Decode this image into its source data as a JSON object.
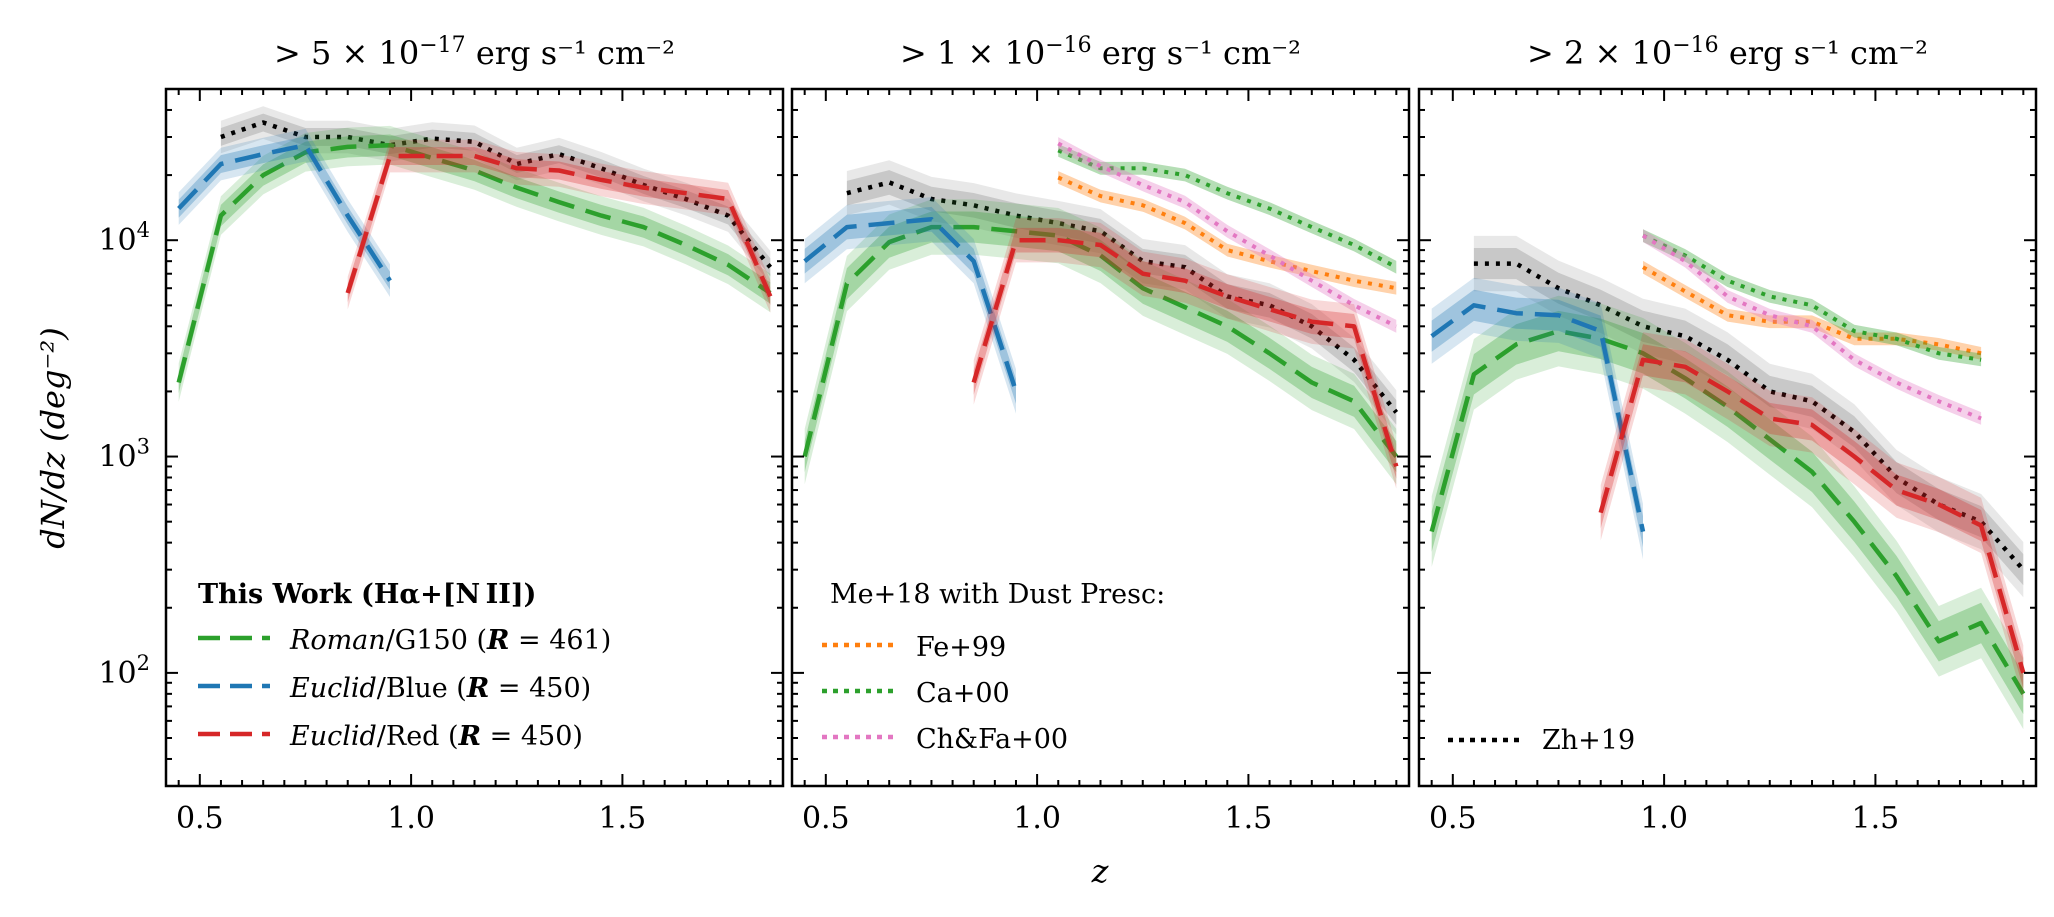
{
  "chart_data": {
    "type": "line",
    "layout": "three panels side by side, shared log y axis",
    "xlabel": "z",
    "ylabel": "dN/dz (deg⁻²)",
    "xlim": [
      0.42,
      1.88
    ],
    "ylim": [
      30,
      50000
    ],
    "yscale": "log",
    "x_ticks": [
      "0.5",
      "1.0",
      "1.5"
    ],
    "x_tick_values": [
      0.5,
      1.0,
      1.5
    ],
    "y_ticks": [
      {
        "base": "10",
        "exp": "2",
        "value": 100
      },
      {
        "base": "10",
        "exp": "3",
        "value": 1000
      },
      {
        "base": "10",
        "exp": "4",
        "value": 10000
      }
    ],
    "legend_thiswork": {
      "title": "This Work (Hα+[N II])",
      "entries": [
        {
          "prefix": "Roman",
          "suffix": "/G150 (",
          "rlabel": "R",
          "rvalue": " = 461)",
          "series": "roman"
        },
        {
          "prefix": "Euclid",
          "suffix": "/Blue (",
          "rlabel": "R",
          "rvalue": " = 450)",
          "series": "euclid_blue"
        },
        {
          "prefix": "Euclid",
          "suffix": "/Red (",
          "rlabel": "R",
          "rvalue": " = 450)",
          "series": "euclid_red"
        }
      ]
    },
    "legend_me18": {
      "title": "Me+18 with Dust Presc:",
      "entries": [
        {
          "label": "Fe+99",
          "series": "fe99"
        },
        {
          "label": "Ca+00",
          "series": "ca00"
        },
        {
          "label": "Ch&Fa+00",
          "series": "chfa00"
        }
      ]
    },
    "legend_zh19": {
      "entries": [
        {
          "label": "Zh+19",
          "series": "zh19"
        }
      ]
    },
    "styles": {
      "roman": {
        "color": "#2ca02c",
        "dash": "dashed"
      },
      "euclid_blue": {
        "color": "#1f77b4",
        "dash": "dashed"
      },
      "euclid_red": {
        "color": "#d62728",
        "dash": "dashed"
      },
      "zh19": {
        "color": "#000000",
        "dash": "dotted",
        "band": "#7f7f7f"
      },
      "fe99": {
        "color": "#ff7f0e",
        "dash": "dotted"
      },
      "ca00": {
        "color": "#2ca02c",
        "dash": "dotted"
      },
      "chfa00": {
        "color": "#e377c2",
        "dash": "dotted"
      }
    },
    "panels": [
      {
        "title_prefix": "> 5 × 10",
        "title_exp": "−17",
        "title_units": " erg s⁻¹ cm⁻²",
        "series": {
          "roman": {
            "x": [
              0.45,
              0.55,
              0.65,
              0.75,
              0.85,
              0.95,
              1.05,
              1.15,
              1.25,
              1.35,
              1.45,
              1.55,
              1.65,
              1.75,
              1.85
            ],
            "y": [
              2200,
              13000,
              20000,
              25500,
              27000,
              27500,
              24000,
              21000,
              17500,
              15000,
              13000,
              11500,
              9500,
              7700,
              5700
            ]
          },
          "euclid_blue": {
            "x": [
              0.45,
              0.55,
              0.65,
              0.75,
              0.85,
              0.95
            ],
            "y": [
              14000,
              22500,
              25000,
              27500,
              13000,
              6500
            ]
          },
          "euclid_red": {
            "x": [
              0.85,
              0.95,
              1.05,
              1.15,
              1.25,
              1.35,
              1.45,
              1.55,
              1.65,
              1.75,
              1.85
            ],
            "y": [
              5700,
              24500,
              24500,
              24500,
              21500,
              21000,
              19000,
              17500,
              16500,
              15500,
              5500
            ]
          },
          "zh19": {
            "x": [
              0.55,
              0.65,
              0.75,
              0.85,
              0.95,
              1.05,
              1.15,
              1.25,
              1.35,
              1.45,
              1.55,
              1.65,
              1.75,
              1.85
            ],
            "y": [
              30000,
              35000,
              30000,
              30000,
              27500,
              29500,
              28500,
              22500,
              25000,
              21500,
              18000,
              15500,
              13000,
              7500
            ]
          }
        }
      },
      {
        "title_prefix": "> 1 × 10",
        "title_exp": "−16",
        "title_units": " erg s⁻¹ cm⁻²",
        "series": {
          "roman": {
            "x": [
              0.45,
              0.55,
              0.65,
              0.75,
              0.85,
              0.95,
              1.05,
              1.15,
              1.25,
              1.35,
              1.45,
              1.55,
              1.65,
              1.75,
              1.85
            ],
            "y": [
              1000,
              6300,
              9800,
              11500,
              11500,
              11000,
              10500,
              8500,
              6000,
              4900,
              4000,
              3000,
              2200,
              1800,
              1000
            ]
          },
          "euclid_blue": {
            "x": [
              0.45,
              0.55,
              0.65,
              0.75,
              0.85,
              0.95
            ],
            "y": [
              8000,
              11500,
              12000,
              12500,
              8000,
              2000
            ]
          },
          "euclid_red": {
            "x": [
              0.85,
              0.95,
              1.05,
              1.15,
              1.25,
              1.35,
              1.45,
              1.55,
              1.65,
              1.75,
              1.85
            ],
            "y": [
              2200,
              10000,
              10000,
              9500,
              7000,
              6500,
              5500,
              4800,
              4200,
              4000,
              900
            ]
          },
          "zh19": {
            "x": [
              0.55,
              0.65,
              0.75,
              0.85,
              0.95,
              1.05,
              1.15,
              1.25,
              1.35,
              1.45,
              1.55,
              1.65,
              1.75,
              1.85
            ],
            "y": [
              16500,
              18500,
              15500,
              14500,
              13000,
              12000,
              11000,
              8000,
              7500,
              5500,
              5000,
              4000,
              2800,
              1600
            ]
          },
          "fe99": {
            "x": [
              1.05,
              1.15,
              1.25,
              1.35,
              1.45,
              1.55,
              1.65,
              1.75,
              1.85
            ],
            "y": [
              19500,
              16000,
              14500,
              12000,
              9000,
              8000,
              7200,
              6500,
              6000
            ]
          },
          "ca00": {
            "x": [
              1.05,
              1.15,
              1.25,
              1.35,
              1.45,
              1.55,
              1.65,
              1.75,
              1.85
            ],
            "y": [
              26000,
              21500,
              21500,
              20000,
              16500,
              14000,
              11500,
              9500,
              7500
            ]
          },
          "chfa00": {
            "x": [
              1.05,
              1.15,
              1.25,
              1.35,
              1.45,
              1.55,
              1.65,
              1.75,
              1.85
            ],
            "y": [
              28000,
              22000,
              18000,
              15000,
              11000,
              8500,
              6500,
              5000,
              4000
            ]
          }
        }
      },
      {
        "title_prefix": "> 2 × 10",
        "title_exp": "−16",
        "title_units": " erg s⁻¹ cm⁻²",
        "series": {
          "roman": {
            "x": [
              0.45,
              0.55,
              0.65,
              0.75,
              0.85,
              0.95,
              1.05,
              1.15,
              1.25,
              1.35,
              1.45,
              1.55,
              1.65,
              1.75,
              1.85
            ],
            "y": [
              450,
              2400,
              3300,
              3800,
              3500,
              3000,
              2300,
              1700,
              1200,
              850,
              500,
              280,
              140,
              170,
              80
            ]
          },
          "euclid_blue": {
            "x": [
              0.45,
              0.55,
              0.65,
              0.75,
              0.85,
              0.95
            ],
            "y": [
              3600,
              5000,
              4600,
              4500,
              3800,
              450
            ]
          },
          "euclid_red": {
            "x": [
              0.85,
              0.95,
              1.05,
              1.15,
              1.25,
              1.35,
              1.45,
              1.55,
              1.65,
              1.75,
              1.85
            ],
            "y": [
              550,
              2800,
              2600,
              2000,
              1500,
              1400,
              1000,
              700,
              600,
              480,
              100
            ]
          },
          "zh19": {
            "x": [
              0.55,
              0.65,
              0.75,
              0.85,
              0.95,
              1.05,
              1.15,
              1.25,
              1.35,
              1.45,
              1.55,
              1.65,
              1.75,
              1.85
            ],
            "y": [
              7800,
              7800,
              6000,
              5000,
              4000,
              3600,
              2800,
              2000,
              1800,
              1300,
              800,
              600,
              500,
              300
            ]
          },
          "fe99": {
            "x": [
              0.95,
              1.05,
              1.15,
              1.25,
              1.35,
              1.45,
              1.55,
              1.65,
              1.75
            ],
            "y": [
              7500,
              5800,
              4500,
              4200,
              4200,
              3500,
              3500,
              3300,
              3000
            ]
          },
          "ca00": {
            "x": [
              0.95,
              1.05,
              1.15,
              1.25,
              1.35,
              1.45,
              1.55,
              1.65,
              1.75
            ],
            "y": [
              10500,
              8500,
              6500,
              5500,
              5000,
              3800,
              3500,
              3000,
              2800
            ]
          },
          "chfa00": {
            "x": [
              0.95,
              1.05,
              1.15,
              1.25,
              1.35,
              1.45,
              1.55,
              1.65,
              1.75
            ],
            "y": [
              10500,
              8000,
              5500,
              4500,
              4000,
              2800,
              2200,
              1800,
              1500
            ]
          }
        }
      }
    ]
  }
}
